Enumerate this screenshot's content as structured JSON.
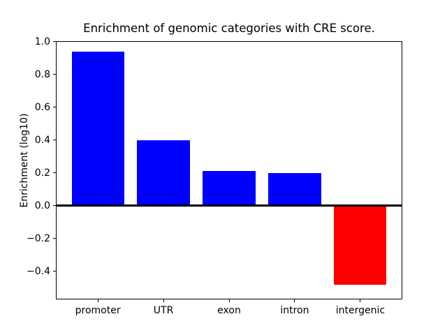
{
  "chart_data": {
    "type": "bar",
    "title": "Enrichment of genomic categories with CRE score.",
    "ylabel": "Enrichment (log10)",
    "xlabel": "",
    "categories": [
      "promoter",
      "UTR",
      "exon",
      "intron",
      "intergenic"
    ],
    "values": [
      0.94,
      0.4,
      0.21,
      0.2,
      -0.48
    ],
    "bar_colors": [
      "#0000ff",
      "#0000ff",
      "#0000ff",
      "#0000ff",
      "#ff0000"
    ],
    "positive_color": "#0000ff",
    "negative_color": "#ff0000",
    "ytick_values": [
      1.0,
      0.8,
      0.6,
      0.4,
      0.2,
      0.0,
      -0.2,
      -0.4
    ],
    "ytick_labels": [
      "1.0",
      "0.8",
      "0.6",
      "0.4",
      "0.2",
      "0.0",
      "−0.2",
      "−0.4"
    ],
    "ylim": [
      -0.568,
      1.0
    ],
    "xlim": [
      -0.64,
      4.64
    ],
    "bar_width": 0.8,
    "grid": false,
    "legend": false,
    "zero_line": true,
    "background": "#ffffff",
    "axis_color": "#000000"
  }
}
